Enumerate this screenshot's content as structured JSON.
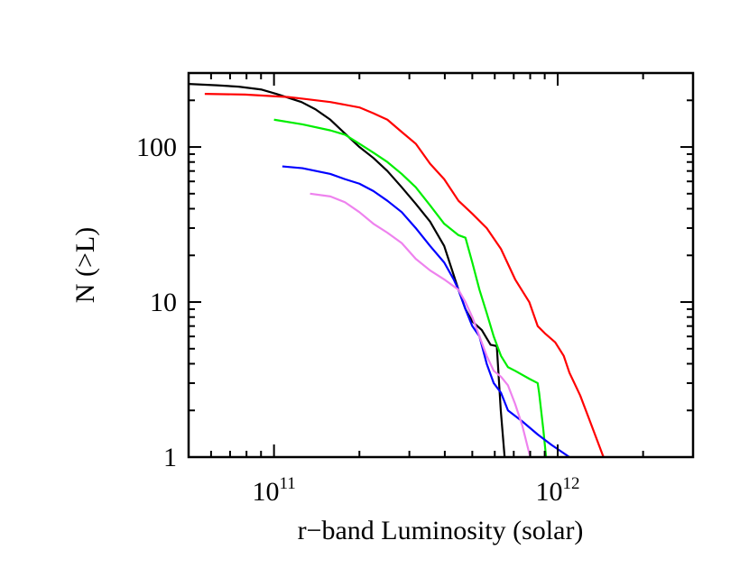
{
  "chart_data": {
    "type": "line",
    "xscale": "log",
    "yscale": "log",
    "xlim": [
      50000000000.0,
      3000000000000.0
    ],
    "ylim": [
      1,
      300
    ],
    "xlabel": "r−band Luminosity (solar)",
    "ylabel": "N (>L)",
    "x_ticks": [
      {
        "value": 100000000000.0,
        "base": "10",
        "exp": "11"
      },
      {
        "value": 1000000000000.0,
        "base": "10",
        "exp": "12"
      }
    ],
    "y_ticks": [
      {
        "value": 1,
        "label": "1"
      },
      {
        "value": 10,
        "label": "10"
      },
      {
        "value": 100,
        "label": "100"
      }
    ],
    "grid": false,
    "legend": "none",
    "series": [
      {
        "color": "#000000",
        "points": [
          [
            50000000000.0,
            255
          ],
          [
            63000000000.0,
            250
          ],
          [
            75000000000.0,
            245
          ],
          [
            90000000000.0,
            235
          ],
          [
            102000000000.0,
            220
          ],
          [
            125000000000.0,
            195
          ],
          [
            140000000000.0,
            175
          ],
          [
            158000000000.0,
            150
          ],
          [
            178000000000.0,
            122
          ],
          [
            200000000000.0,
            100
          ],
          [
            224000000000.0,
            85
          ],
          [
            251000000000.0,
            70
          ],
          [
            282000000000.0,
            55
          ],
          [
            316000000000.0,
            43
          ],
          [
            355000000000.0,
            33
          ],
          [
            398000000000.0,
            23
          ],
          [
            420000000000.0,
            17
          ],
          [
            447000000000.0,
            12
          ],
          [
            473000000000.0,
            9
          ],
          [
            500000000000.0,
            7.5
          ],
          [
            540000000000.0,
            6.6
          ],
          [
            580000000000.0,
            5.3
          ],
          [
            610000000000.0,
            5.2
          ],
          [
            630000000000.0,
            2.0
          ],
          [
            650000000000.0,
            1.0
          ]
        ]
      },
      {
        "color": "#ff0000",
        "points": [
          [
            57000000000.0,
            220
          ],
          [
            79000000000.0,
            218
          ],
          [
            112000000000.0,
            210
          ],
          [
            126000000000.0,
            205
          ],
          [
            158000000000.0,
            195
          ],
          [
            200000000000.0,
            180
          ],
          [
            224000000000.0,
            165
          ],
          [
            251000000000.0,
            150
          ],
          [
            282000000000.0,
            125
          ],
          [
            316000000000.0,
            105
          ],
          [
            355000000000.0,
            78
          ],
          [
            398000000000.0,
            62
          ],
          [
            447000000000.0,
            45
          ],
          [
            501000000000.0,
            37
          ],
          [
            562000000000.0,
            30
          ],
          [
            631000000000.0,
            22
          ],
          [
            708000000000.0,
            14
          ],
          [
            794000000000.0,
            10
          ],
          [
            850000000000.0,
            7
          ],
          [
            900000000000.0,
            6.3
          ],
          [
            980000000000.0,
            5.5
          ],
          [
            1050000000000.0,
            4.5
          ],
          [
            1100000000000.0,
            3.5
          ],
          [
            1200000000000.0,
            2.5
          ],
          [
            1300000000000.0,
            1.7
          ],
          [
            1450000000000.0,
            1.0
          ]
        ]
      },
      {
        "color": "#00ee00",
        "points": [
          [
            100000000000.0,
            150
          ],
          [
            126000000000.0,
            140
          ],
          [
            158000000000.0,
            128
          ],
          [
            178000000000.0,
            120
          ],
          [
            200000000000.0,
            105
          ],
          [
            224000000000.0,
            92
          ],
          [
            251000000000.0,
            80
          ],
          [
            282000000000.0,
            67
          ],
          [
            316000000000.0,
            55
          ],
          [
            355000000000.0,
            42
          ],
          [
            398000000000.0,
            32
          ],
          [
            447000000000.0,
            27
          ],
          [
            473000000000.0,
            26
          ],
          [
            500000000000.0,
            18
          ],
          [
            530000000000.0,
            12
          ],
          [
            562000000000.0,
            8.5
          ],
          [
            595000000000.0,
            6.0
          ],
          [
            631000000000.0,
            4.5
          ],
          [
            668000000000.0,
            3.8
          ],
          [
            708000000000.0,
            3.6
          ],
          [
            794000000000.0,
            3.2
          ],
          [
            850000000000.0,
            3.0
          ],
          [
            860000000000.0,
            2.6
          ],
          [
            890000000000.0,
            1.5
          ],
          [
            910000000000.0,
            1.0
          ]
        ]
      },
      {
        "color": "#0000ff",
        "points": [
          [
            107000000000.0,
            75
          ],
          [
            126000000000.0,
            73
          ],
          [
            158000000000.0,
            67
          ],
          [
            178000000000.0,
            62
          ],
          [
            200000000000.0,
            58
          ],
          [
            224000000000.0,
            52
          ],
          [
            251000000000.0,
            45
          ],
          [
            282000000000.0,
            38
          ],
          [
            316000000000.0,
            30
          ],
          [
            355000000000.0,
            23
          ],
          [
            398000000000.0,
            18
          ],
          [
            430000000000.0,
            14
          ],
          [
            447000000000.0,
            12
          ],
          [
            473000000000.0,
            9
          ],
          [
            500000000000.0,
            7
          ],
          [
            530000000000.0,
            6.0
          ],
          [
            562000000000.0,
            4.0
          ],
          [
            595000000000.0,
            3.0
          ],
          [
            631000000000.0,
            2.6
          ],
          [
            668000000000.0,
            2.0
          ],
          [
            750000000000.0,
            1.7
          ],
          [
            850000000000.0,
            1.4
          ],
          [
            950000000000.0,
            1.2
          ],
          [
            1100000000000.0,
            1.0
          ]
        ]
      },
      {
        "color": "#ee82ee",
        "points": [
          [
            134000000000.0,
            50
          ],
          [
            158000000000.0,
            48
          ],
          [
            178000000000.0,
            44
          ],
          [
            200000000000.0,
            38
          ],
          [
            224000000000.0,
            32
          ],
          [
            251000000000.0,
            28
          ],
          [
            282000000000.0,
            24
          ],
          [
            316000000000.0,
            19
          ],
          [
            355000000000.0,
            16
          ],
          [
            398000000000.0,
            14
          ],
          [
            447000000000.0,
            12
          ],
          [
            473000000000.0,
            10
          ],
          [
            500000000000.0,
            8
          ],
          [
            530000000000.0,
            6.0
          ],
          [
            562000000000.0,
            4.5
          ],
          [
            595000000000.0,
            3.6
          ],
          [
            631000000000.0,
            3.3
          ],
          [
            668000000000.0,
            2.9
          ],
          [
            708000000000.0,
            2.2
          ],
          [
            750000000000.0,
            1.6
          ],
          [
            800000000000.0,
            1.0
          ]
        ]
      }
    ]
  }
}
